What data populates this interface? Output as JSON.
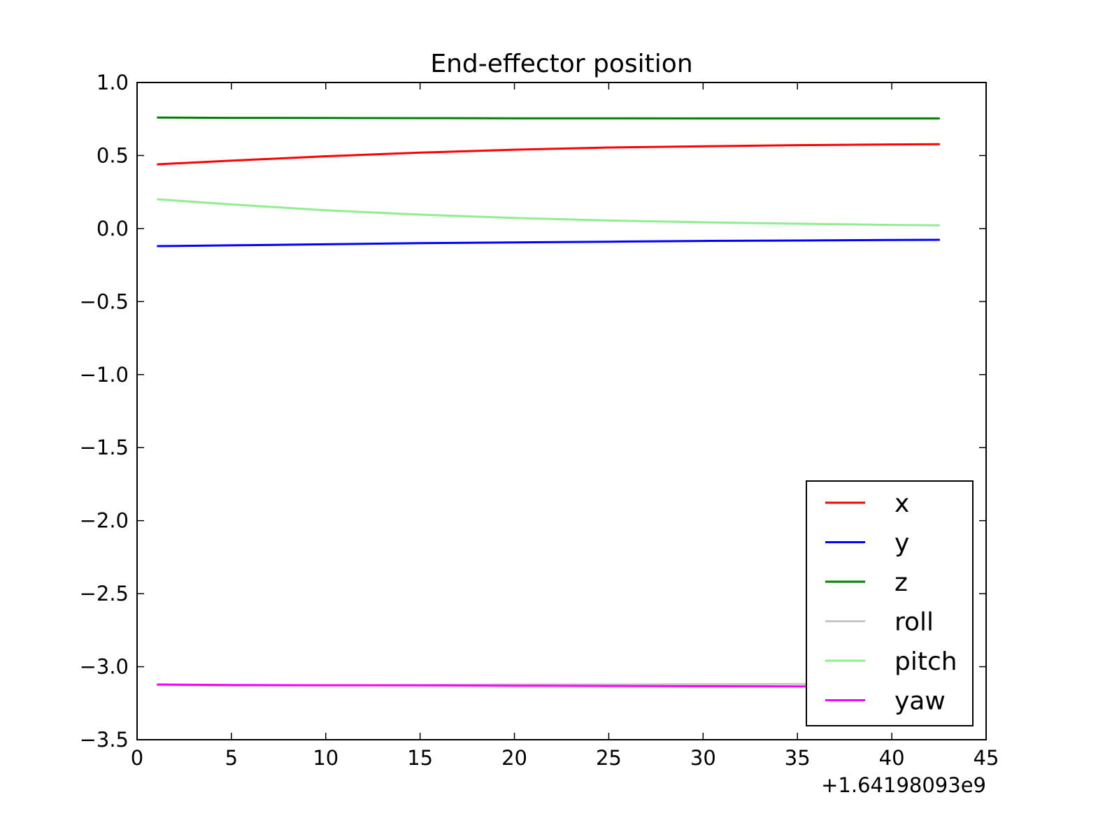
{
  "chart_data": {
    "type": "line",
    "title": "End-effector position",
    "xlabel": "",
    "ylabel": "",
    "x_offset_label": "+1.64198093e9",
    "xlim": [
      0,
      45
    ],
    "ylim": [
      -3.5,
      1.0
    ],
    "x_ticks": [
      0,
      5,
      10,
      15,
      20,
      25,
      30,
      35,
      40,
      45
    ],
    "x_tick_labels": [
      "0",
      "5",
      "10",
      "15",
      "20",
      "25",
      "30",
      "35",
      "40",
      "45"
    ],
    "y_ticks": [
      1.0,
      0.5,
      0.0,
      -0.5,
      -1.0,
      -1.5,
      -2.0,
      -2.5,
      -3.0,
      -3.5
    ],
    "y_tick_labels": [
      "1.0",
      "0.5",
      "0.0",
      "−0.5",
      "−1.0",
      "−1.5",
      "−2.0",
      "−2.5",
      "−3.0",
      "−3.5"
    ],
    "grid": false,
    "legend_position": "lower-right",
    "x": [
      1.1,
      5,
      10,
      15,
      20,
      25,
      30,
      35,
      40,
      42.5
    ],
    "series": [
      {
        "name": "x",
        "color": "#ff0000",
        "values": [
          0.44,
          0.465,
          0.495,
          0.52,
          0.54,
          0.555,
          0.563,
          0.571,
          0.576,
          0.578
        ]
      },
      {
        "name": "y",
        "color": "#0000ff",
        "values": [
          -0.12,
          -0.115,
          -0.108,
          -0.1,
          -0.095,
          -0.09,
          -0.085,
          -0.082,
          -0.078,
          -0.077
        ]
      },
      {
        "name": "z",
        "color": "#008000",
        "values": [
          0.76,
          0.758,
          0.757,
          0.756,
          0.755,
          0.755,
          0.754,
          0.754,
          0.754,
          0.754
        ]
      },
      {
        "name": "roll",
        "color": "#c8c8c8",
        "values": [
          -3.125,
          -3.13,
          -3.128,
          -3.125,
          -3.122,
          -3.122,
          -3.12,
          -3.118,
          -3.118,
          -3.118
        ]
      },
      {
        "name": "pitch",
        "color": "#90ee90",
        "values": [
          0.2,
          0.165,
          0.125,
          0.095,
          0.072,
          0.055,
          0.043,
          0.033,
          0.025,
          0.022
        ]
      },
      {
        "name": "yaw",
        "color": "#ff00ff",
        "values": [
          -3.122,
          -3.125,
          -3.127,
          -3.128,
          -3.13,
          -3.132,
          -3.134,
          -3.135,
          -3.136,
          -3.137
        ]
      }
    ]
  }
}
